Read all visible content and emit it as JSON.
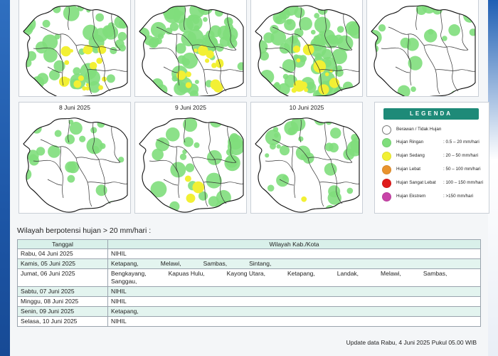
{
  "colors": {
    "none": "#ffffff",
    "ringan": "#7fde7c",
    "sedang": "#f2f034",
    "lebat": "#e9932d",
    "sangat_lebat": "#e01b1b",
    "ekstrem": "#c844a8",
    "accent": "#1e8a78"
  },
  "maps": [
    {
      "date": "",
      "intensity": [
        0.55,
        0.45
      ],
      "sedang": 0.28
    },
    {
      "date": "",
      "intensity": [
        0.8,
        0.7
      ],
      "sedang": 0.2
    },
    {
      "date": "",
      "intensity": [
        0.85,
        0.75
      ],
      "sedang": 0.22
    },
    {
      "date": "",
      "intensity": [
        0.25,
        0.25
      ],
      "sedang": 0.0
    },
    {
      "date": "8 Juni 2025",
      "intensity": [
        0.3,
        0.15
      ],
      "sedang": 0.0
    },
    {
      "date": "9 Juni 2025",
      "intensity": [
        0.35,
        0.35
      ],
      "sedang": 0.05
    },
    {
      "date": "10 Juni 2025",
      "intensity": [
        0.45,
        0.3
      ],
      "sedang": 0.02
    }
  ],
  "legend": {
    "title": "LEGENDA",
    "items": [
      {
        "label": "Berawan / Tidak Hujan",
        "range": "",
        "color": "#ffffff"
      },
      {
        "label": "Hujan Ringan",
        "range": ": 0.5 – 20 mm/hari",
        "color": "#7fde7c"
      },
      {
        "label": "Hujan Sedang",
        "range": ": 20 – 50 mm/hari",
        "color": "#f2f034"
      },
      {
        "label": "Hujan Lebat",
        "range": ": 50 – 100 mm/hari",
        "color": "#e9932d"
      },
      {
        "label": "Hujan Sangat Lebat",
        "range": ": 100 – 150 mm/hari",
        "color": "#e01b1b"
      },
      {
        "label": "Hujan Ekstrem",
        "range": ": >150 mm/hari",
        "color": "#c844a8"
      }
    ]
  },
  "wilayah": {
    "title": "Wilayah berpotensi hujan > 20 mm/hari :",
    "headers": [
      "Tanggal",
      "Wilayah Kab./Kota"
    ],
    "rows": [
      {
        "date": "Rabu, 04 Juni 2025",
        "regions": [
          "NIHIL"
        ]
      },
      {
        "date": "Kamis, 05 Juni 2025",
        "regions": [
          "Ketapang,",
          "Melawi,",
          "Sambas,",
          "Sintang,"
        ]
      },
      {
        "date": "Jumat, 06 Juni 2025",
        "regions": [
          "Bengkayang,",
          "Kapuas Hulu,",
          "Kayong Utara,",
          "Ketapang,",
          "Landak,",
          "Melawi,",
          "Sambas,",
          "Sanggau,"
        ]
      },
      {
        "date": "Sabtu, 07 Juni 2025",
        "regions": [
          "NIHIL"
        ]
      },
      {
        "date": "Minggu, 08 Juni 2025",
        "regions": [
          "NIHIL"
        ]
      },
      {
        "date": "Senin, 09 Juni 2025",
        "regions": [
          "Ketapang,"
        ]
      },
      {
        "date": "Selasa, 10 Juni 2025",
        "regions": [
          "NIHIL"
        ]
      }
    ]
  },
  "update": "Update data Rabu, 4 Juni 2025 Pukul 05.00 WIB"
}
